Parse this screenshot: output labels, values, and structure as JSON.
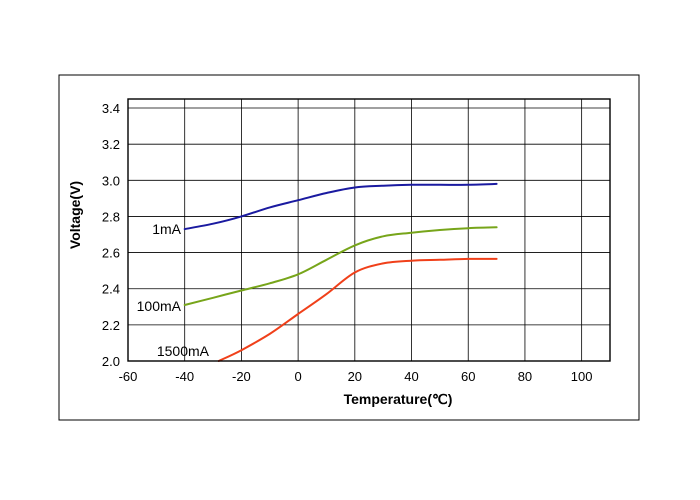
{
  "chart_data": {
    "type": "line",
    "xlabel": "Temperature(℃)",
    "ylabel": "Voltage(V)",
    "xlim": [
      -60,
      110
    ],
    "ylim": [
      2.0,
      3.45
    ],
    "x_ticks": [
      "-60",
      "-40",
      "-20",
      "0",
      "20",
      "40",
      "60",
      "80",
      "100"
    ],
    "y_ticks": [
      "2.0",
      "2.2",
      "2.4",
      "2.6",
      "2.8",
      "3.0",
      "3.2",
      "3.4"
    ],
    "grid": true,
    "series": [
      {
        "name": "1mA",
        "color": "#1a1aa0",
        "x": [
          -40,
          -30,
          -20,
          -10,
          0,
          10,
          20,
          30,
          40,
          50,
          60,
          70
        ],
        "y": [
          2.73,
          2.76,
          2.8,
          2.85,
          2.89,
          2.93,
          2.96,
          2.97,
          2.975,
          2.975,
          2.975,
          2.98
        ]
      },
      {
        "name": "100mA",
        "color": "#77a51a",
        "x": [
          -40,
          -30,
          -20,
          -10,
          0,
          10,
          20,
          30,
          40,
          50,
          60,
          70
        ],
        "y": [
          2.31,
          2.35,
          2.39,
          2.43,
          2.48,
          2.56,
          2.64,
          2.69,
          2.71,
          2.725,
          2.735,
          2.74
        ]
      },
      {
        "name": "1500mA",
        "color": "#f0401a",
        "x": [
          -28,
          -20,
          -10,
          0,
          10,
          20,
          30,
          40,
          50,
          60,
          70
        ],
        "y": [
          2.0,
          2.06,
          2.15,
          2.26,
          2.37,
          2.49,
          2.54,
          2.555,
          2.56,
          2.565,
          2.565
        ]
      }
    ]
  }
}
